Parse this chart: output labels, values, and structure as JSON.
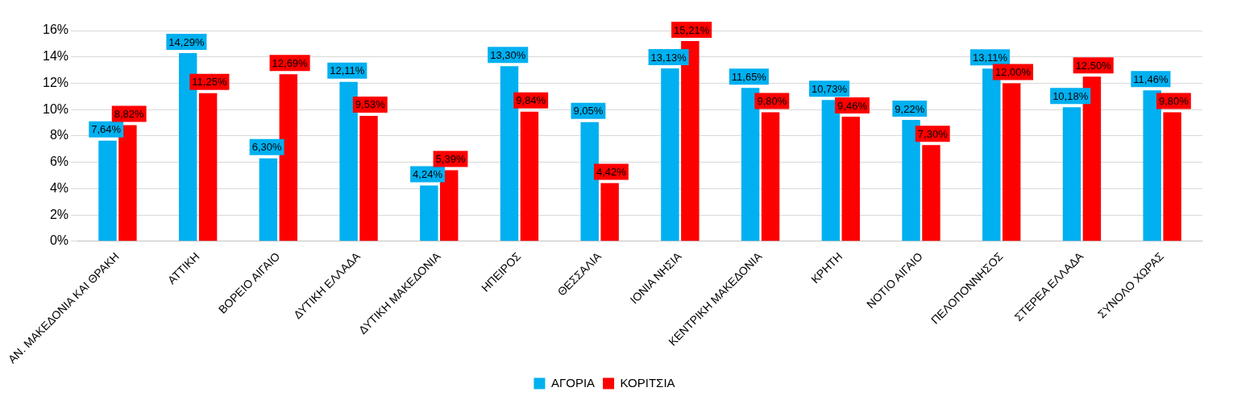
{
  "chart_data": {
    "type": "bar",
    "categories": [
      "ΑΝ. ΜΑΚΕΔΟΝΙΑ ΚΑΙ ΘΡΑΚΗ",
      "ΑΤΤΙΚΗ",
      "ΒΟΡΕΙΟ ΑΙΓΑΙΟ",
      "ΔΥΤΙΚΗ ΕΛΛΑΔΑ",
      "ΔΥΤΙΚΗ ΜΑΚΕΔΟΝΙΑ",
      "ΗΠΕΙΡΟΣ",
      "ΘΕΣΣΑΛΙΑ",
      "ΙΟΝΙΑ ΝΗΣΙΑ",
      "ΚΕΝΤΡΙΚΗ ΜΑΚΕΔΟΝΙΑ",
      "ΚΡΗΤΗ",
      "ΝΟΤΙΟ ΑΙΓΑΙΟ",
      "ΠΕΛΟΠΟΝΝΗΣΟΣ",
      "ΣΤΕΡΕΑ ΕΛΛΑΔΑ",
      "ΣΥΝΟΛΟ ΧΩΡΑΣ"
    ],
    "series": [
      {
        "name": "ΑΓΟΡΙΑ",
        "color": "#00b0f0",
        "values": [
          7.64,
          14.29,
          6.3,
          12.11,
          4.24,
          13.3,
          9.05,
          13.13,
          11.65,
          10.73,
          9.22,
          13.11,
          10.18,
          11.46
        ],
        "value_labels": [
          "7,64%",
          "14,29%",
          "6,30%",
          "12,11%",
          "4,24%",
          "13,30%",
          "9,05%",
          "13,13%",
          "11,65%",
          "10,73%",
          "9,22%",
          "13,11%",
          "10,18%",
          "11,46%"
        ]
      },
      {
        "name": "ΚΟΡΙΤΣΙΑ",
        "color": "#ff0000",
        "values": [
          8.82,
          11.25,
          12.69,
          9.53,
          5.39,
          9.84,
          4.42,
          15.21,
          9.8,
          9.46,
          7.3,
          12.0,
          12.5,
          9.8
        ],
        "value_labels": [
          "8,82%",
          "11,25%",
          "12,69%",
          "9,53%",
          "5,39%",
          "9,84%",
          "4,42%",
          "15,21%",
          "9,80%",
          "9,46%",
          "7,30%",
          "12,00%",
          "12,50%",
          "9,80%"
        ]
      }
    ],
    "ylim": [
      0,
      16
    ],
    "yticks": [
      {
        "value": 0,
        "label": "0%"
      },
      {
        "value": 2,
        "label": "2%"
      },
      {
        "value": 4,
        "label": "4%"
      },
      {
        "value": 6,
        "label": "6%"
      },
      {
        "value": 8,
        "label": "8%"
      },
      {
        "value": 10,
        "label": "10%"
      },
      {
        "value": 12,
        "label": "12%"
      },
      {
        "value": 14,
        "label": "14%"
      },
      {
        "value": 16,
        "label": "16%"
      }
    ],
    "grid": "y",
    "legend": "bottom"
  }
}
